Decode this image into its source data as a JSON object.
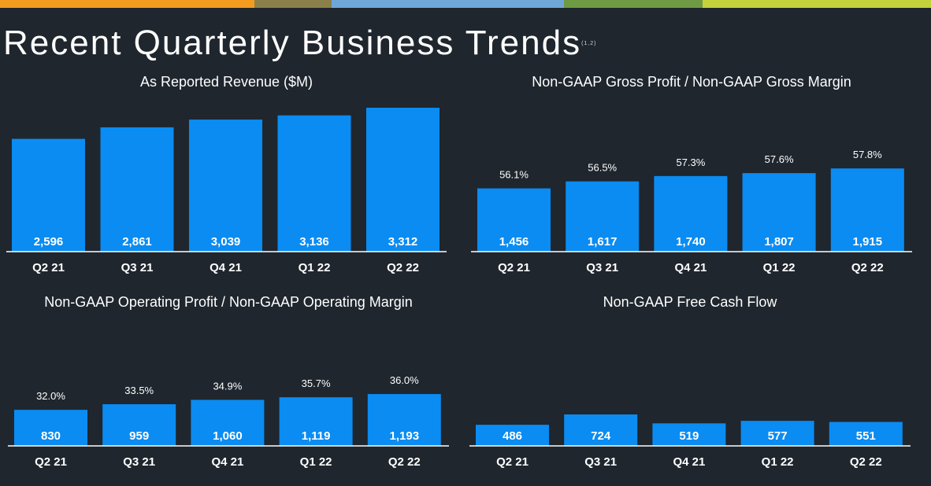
{
  "header": {
    "title": "Recent Quarterly Business Trends",
    "footnote": "(1,2)",
    "stripe_colors": [
      "#f39b1f",
      "#8b7f4a",
      "#6fa8d8",
      "#6e9a43",
      "#c4d23b"
    ]
  },
  "colors": {
    "bar": "#0a8cf2",
    "baseline": "#ffffff",
    "background": "#1f262e"
  },
  "chart_data": [
    {
      "type": "bar",
      "title": "As Reported Revenue ($M)",
      "categories": [
        "Q2 21",
        "Q3 21",
        "Q4 21",
        "Q1 22",
        "Q2 22"
      ],
      "values": [
        2596,
        2861,
        3039,
        3136,
        3312
      ],
      "value_labels": [
        "2,596",
        "2,861",
        "3,039",
        "3,136",
        "3,312"
      ],
      "pct_labels": [],
      "xlabel": "",
      "ylabel": "",
      "ylim": [
        0,
        3312
      ]
    },
    {
      "type": "bar",
      "title": "Non-GAAP Gross Profit / Non-GAAP Gross Margin",
      "categories": [
        "Q2 21",
        "Q3 21",
        "Q4 21",
        "Q1 22",
        "Q2 22"
      ],
      "values": [
        1456,
        1617,
        1740,
        1807,
        1915
      ],
      "value_labels": [
        "1,456",
        "1,617",
        "1,740",
        "1,807",
        "1,915"
      ],
      "pct_labels": [
        "56.1%",
        "56.5%",
        "57.3%",
        "57.6%",
        "57.8%"
      ],
      "xlabel": "",
      "ylabel": "",
      "ylim": [
        0,
        3312
      ]
    },
    {
      "type": "bar",
      "title": "Non-GAAP Operating Profit / Non-GAAP Operating Margin",
      "categories": [
        "Q2 21",
        "Q3 21",
        "Q4 21",
        "Q1 22",
        "Q2 22"
      ],
      "values": [
        830,
        959,
        1060,
        1119,
        1193
      ],
      "value_labels": [
        "830",
        "959",
        "1,060",
        "1,119",
        "1,193"
      ],
      "pct_labels": [
        "32.0%",
        "33.5%",
        "34.9%",
        "35.7%",
        "36.0%"
      ],
      "xlabel": "",
      "ylabel": "",
      "ylim": [
        0,
        3312
      ]
    },
    {
      "type": "bar",
      "title": "Non-GAAP Free Cash Flow",
      "categories": [
        "Q2 21",
        "Q3 21",
        "Q4 21",
        "Q1 22",
        "Q2 22"
      ],
      "values": [
        486,
        724,
        519,
        577,
        551
      ],
      "value_labels": [
        "486",
        "724",
        "519",
        "577",
        "551"
      ],
      "pct_labels": [],
      "xlabel": "",
      "ylabel": "",
      "ylim": [
        0,
        3312
      ]
    }
  ]
}
